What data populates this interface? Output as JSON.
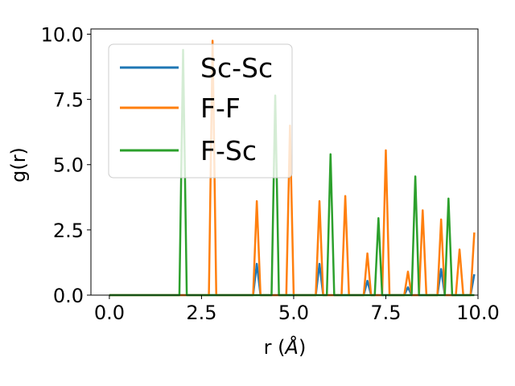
{
  "chart_data": {
    "type": "line",
    "xlabel_main": "r (",
    "xlabel_unit": "Å",
    "xlabel_close": ")",
    "ylabel": "g(r)",
    "xlim": [
      -0.5,
      10.0
    ],
    "ylim": [
      0.0,
      10.2
    ],
    "x_ticks": [
      0.0,
      2.5,
      5.0,
      7.5,
      10.0
    ],
    "x_tick_labels": [
      "0.0",
      "2.5",
      "5.0",
      "7.5",
      "10.0"
    ],
    "y_ticks": [
      0.0,
      2.5,
      5.0,
      7.5,
      10.0
    ],
    "y_tick_labels": [
      "0.0",
      "2.5",
      "5.0",
      "7.5",
      "10.0"
    ],
    "grid": false,
    "legend_position": "upper-left",
    "x_step": 0.1,
    "x_max": 9.9,
    "series": [
      {
        "name": "Sc-Sc",
        "color": "#1f77b4",
        "peaks": [
          {
            "x": 4.0,
            "y": 1.2
          },
          {
            "x": 5.7,
            "y": 1.2
          },
          {
            "x": 7.0,
            "y": 0.55
          },
          {
            "x": 8.1,
            "y": 0.3
          },
          {
            "x": 9.0,
            "y": 1.0
          },
          {
            "x": 9.9,
            "y": 0.8
          }
        ]
      },
      {
        "name": "F-F",
        "color": "#ff7f0e",
        "peaks": [
          {
            "x": 2.8,
            "y": 9.75
          },
          {
            "x": 4.0,
            "y": 3.6
          },
          {
            "x": 4.9,
            "y": 6.5
          },
          {
            "x": 5.7,
            "y": 3.6
          },
          {
            "x": 6.4,
            "y": 3.8
          },
          {
            "x": 7.0,
            "y": 1.6
          },
          {
            "x": 7.5,
            "y": 5.55
          },
          {
            "x": 8.1,
            "y": 0.9
          },
          {
            "x": 8.5,
            "y": 3.25
          },
          {
            "x": 9.0,
            "y": 2.9
          },
          {
            "x": 9.5,
            "y": 1.75
          },
          {
            "x": 9.9,
            "y": 2.4
          }
        ]
      },
      {
        "name": "F-Sc",
        "color": "#2ca02c",
        "peaks": [
          {
            "x": 2.0,
            "y": 9.4
          },
          {
            "x": 4.5,
            "y": 7.65
          },
          {
            "x": 6.0,
            "y": 5.4
          },
          {
            "x": 7.3,
            "y": 2.95
          },
          {
            "x": 8.3,
            "y": 4.55
          },
          {
            "x": 9.2,
            "y": 3.7
          }
        ]
      }
    ]
  }
}
